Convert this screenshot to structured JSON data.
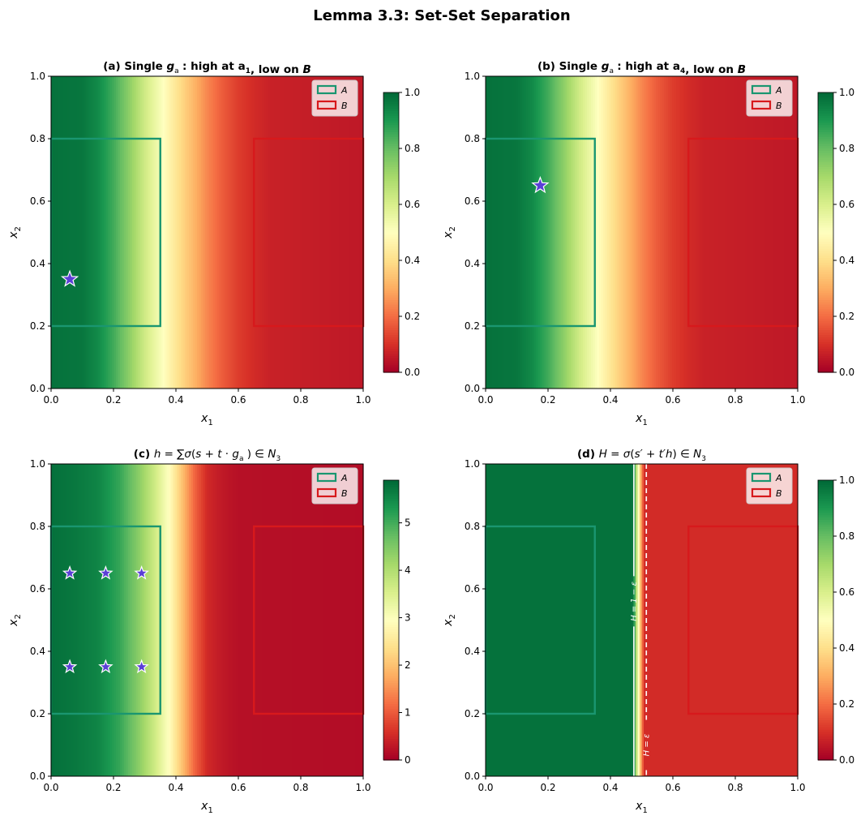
{
  "figure": {
    "suptitle": "Lemma 3.3: Set-Set Separation"
  },
  "chart_data": [
    {
      "type": "heatmap",
      "title": "(a) Single g_a1: high at a1, low on B",
      "xlabel": "x1",
      "ylabel": "x2",
      "xlim": [
        0,
        1
      ],
      "ylim": [
        0,
        1
      ],
      "xticks": [
        "0.0",
        "0.2",
        "0.4",
        "0.6",
        "0.8",
        "1.0"
      ],
      "yticks": [
        "0.0",
        "0.2",
        "0.4",
        "0.6",
        "0.8",
        "1.0"
      ],
      "colormap": "RdYlGn",
      "colorbar": {
        "min": 0,
        "max": 1,
        "ticks": [
          "0.0",
          "0.2",
          "0.4",
          "0.6",
          "0.8",
          "1.0"
        ]
      },
      "field": {
        "x": [
          0,
          0.1,
          0.15,
          0.2,
          0.25,
          0.3,
          0.35,
          0.4,
          0.45,
          0.5,
          0.55,
          0.6,
          0.65,
          0.7,
          1.0
        ],
        "value": [
          0.98,
          0.97,
          0.93,
          0.85,
          0.74,
          0.62,
          0.52,
          0.42,
          0.33,
          0.24,
          0.17,
          0.12,
          0.09,
          0.07,
          0.05
        ]
      },
      "regions": [
        {
          "name": "A",
          "x": [
            0,
            0.35
          ],
          "y": [
            0.2,
            0.8
          ],
          "color": "#1a9670"
        },
        {
          "name": "B",
          "x": [
            0.65,
            1.0
          ],
          "y": [
            0.2,
            0.8
          ],
          "color": "#d7191c"
        }
      ],
      "markers": [
        {
          "x": 0.06,
          "y": 0.35,
          "symbol": "star"
        }
      ],
      "legend": {
        "position": "top-right",
        "entries": [
          "A",
          "B"
        ]
      }
    },
    {
      "type": "heatmap",
      "title": "(b) Single g_a4: high at a4, low on B",
      "xlabel": "x1",
      "ylabel": "x2",
      "xlim": [
        0,
        1
      ],
      "ylim": [
        0,
        1
      ],
      "xticks": [
        "0.0",
        "0.2",
        "0.4",
        "0.6",
        "0.8",
        "1.0"
      ],
      "yticks": [
        "0.0",
        "0.2",
        "0.4",
        "0.6",
        "0.8",
        "1.0"
      ],
      "colormap": "RdYlGn",
      "colorbar": {
        "min": 0,
        "max": 1,
        "ticks": [
          "0.0",
          "0.2",
          "0.4",
          "0.6",
          "0.8",
          "1.0"
        ]
      },
      "field": {
        "x": [
          0,
          0.1,
          0.15,
          0.2,
          0.25,
          0.3,
          0.35,
          0.4,
          0.45,
          0.5,
          0.55,
          0.6,
          0.65,
          0.7,
          1.0
        ],
        "value": [
          0.98,
          0.97,
          0.93,
          0.85,
          0.74,
          0.62,
          0.52,
          0.42,
          0.33,
          0.24,
          0.17,
          0.12,
          0.09,
          0.07,
          0.05
        ]
      },
      "regions": [
        {
          "name": "A",
          "x": [
            0,
            0.35
          ],
          "y": [
            0.2,
            0.8
          ],
          "color": "#1a9670"
        },
        {
          "name": "B",
          "x": [
            0.65,
            1.0
          ],
          "y": [
            0.2,
            0.8
          ],
          "color": "#d7191c"
        }
      ],
      "markers": [
        {
          "x": 0.175,
          "y": 0.65,
          "symbol": "star"
        }
      ],
      "legend": {
        "position": "top-right",
        "entries": [
          "A",
          "B"
        ]
      }
    },
    {
      "type": "heatmap",
      "title": "(c) h = Σσ(s + t·g_aj) ∈ N_3",
      "xlabel": "x1",
      "ylabel": "x2",
      "xlim": [
        0,
        1
      ],
      "ylim": [
        0,
        1
      ],
      "xticks": [
        "0.0",
        "0.2",
        "0.4",
        "0.6",
        "0.8",
        "1.0"
      ],
      "yticks": [
        "0.0",
        "0.2",
        "0.4",
        "0.6",
        "0.8",
        "1.0"
      ],
      "colormap": "RdYlGn",
      "colorbar": {
        "min": 0,
        "max": 5.9,
        "ticks": [
          "0",
          "1",
          "2",
          "3",
          "4",
          "5"
        ],
        "tick_values": [
          0,
          1,
          2,
          3,
          4,
          5
        ]
      },
      "field": {
        "x": [
          0,
          0.08,
          0.15,
          0.22,
          0.28,
          0.33,
          0.38,
          0.42,
          0.46,
          0.5,
          0.55,
          0.6,
          1.0
        ],
        "value": [
          5.8,
          5.7,
          5.55,
          5.1,
          4.4,
          3.7,
          2.9,
          2.0,
          1.1,
          0.5,
          0.3,
          0.2,
          0.15
        ]
      },
      "regions": [
        {
          "name": "A",
          "x": [
            0,
            0.35
          ],
          "y": [
            0.2,
            0.8
          ],
          "color": "#1a9670"
        },
        {
          "name": "B",
          "x": [
            0.65,
            1.0
          ],
          "y": [
            0.2,
            0.8
          ],
          "color": "#d7191c"
        }
      ],
      "markers": [
        {
          "x": 0.06,
          "y": 0.65,
          "symbol": "star"
        },
        {
          "x": 0.175,
          "y": 0.65,
          "symbol": "star"
        },
        {
          "x": 0.29,
          "y": 0.65,
          "symbol": "star"
        },
        {
          "x": 0.06,
          "y": 0.35,
          "symbol": "star"
        },
        {
          "x": 0.175,
          "y": 0.35,
          "symbol": "star"
        },
        {
          "x": 0.29,
          "y": 0.35,
          "symbol": "star"
        }
      ],
      "legend": {
        "position": "top-right",
        "entries": [
          "A",
          "B"
        ]
      }
    },
    {
      "type": "heatmap",
      "title": "(d) H = σ(s' + t'h) ∈ N_3^σ",
      "xlabel": "x1",
      "ylabel": "x2",
      "xlim": [
        0,
        1
      ],
      "ylim": [
        0,
        1
      ],
      "xticks": [
        "0.0",
        "0.2",
        "0.4",
        "0.6",
        "0.8",
        "1.0"
      ],
      "yticks": [
        "0.0",
        "0.2",
        "0.4",
        "0.6",
        "0.8",
        "1.0"
      ],
      "colormap": "RdYlGn",
      "colorbar": {
        "min": 0,
        "max": 1,
        "ticks": [
          "0.0",
          "0.2",
          "0.4",
          "0.6",
          "0.8",
          "1.0"
        ]
      },
      "field": {
        "x": [
          0,
          0.47,
          0.475,
          0.48,
          0.485,
          0.49,
          0.495,
          0.5,
          0.505,
          0.51,
          1.0
        ],
        "value": [
          0.98,
          0.98,
          0.92,
          0.78,
          0.62,
          0.5,
          0.38,
          0.25,
          0.14,
          0.09,
          0.09
        ]
      },
      "regions": [
        {
          "name": "A",
          "x": [
            0,
            0.35
          ],
          "y": [
            0.2,
            0.8
          ],
          "color": "#1a9670"
        },
        {
          "name": "B",
          "x": [
            0.65,
            1.0
          ],
          "y": [
            0.2,
            0.8
          ],
          "color": "#d7191c"
        }
      ],
      "contours": [
        {
          "x": 0.475,
          "style": "solid",
          "label": "H = 1 − ε",
          "label_y": 0.56
        },
        {
          "x": 0.515,
          "style": "dashed",
          "label": "H = ε",
          "label_y": 0.1
        }
      ],
      "markers": [],
      "legend": {
        "position": "top-right",
        "entries": [
          "A",
          "B"
        ]
      }
    }
  ]
}
